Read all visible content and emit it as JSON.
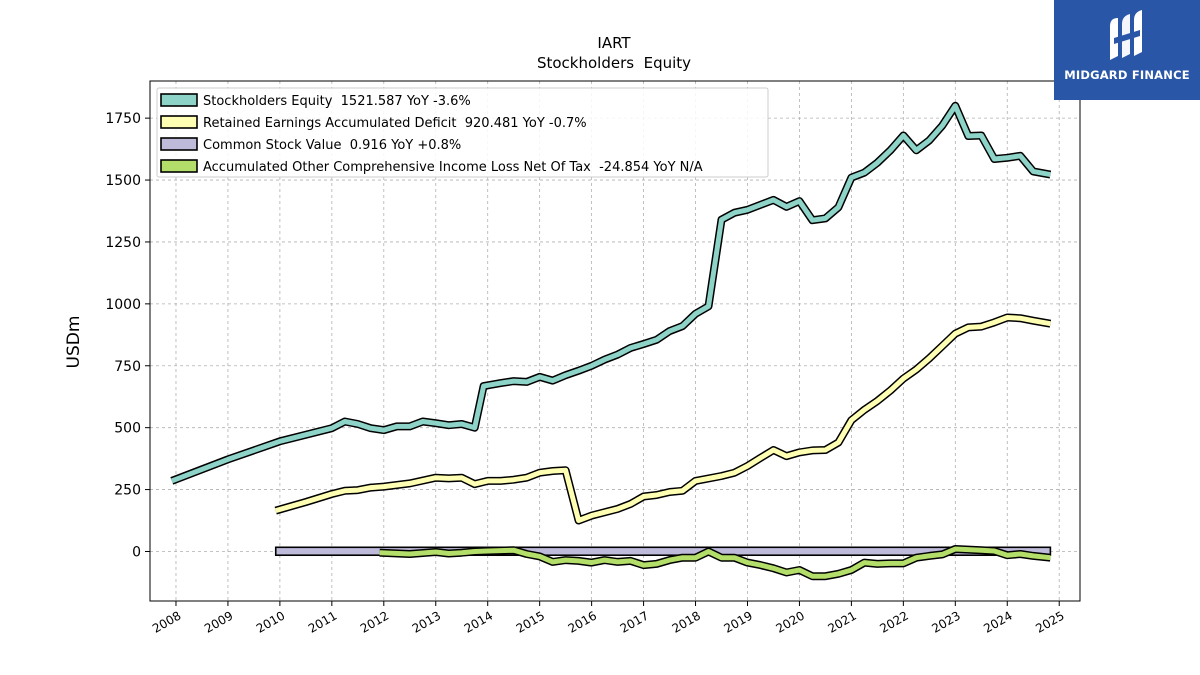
{
  "brand": {
    "name": "MIDGARD FINANCE",
    "color": "#2a56a8"
  },
  "chart_data": {
    "type": "line",
    "title": "IART",
    "subtitle": "Stockholders  Equity",
    "ylabel": "USDm",
    "xlabel": "",
    "xlim": [
      2007.5,
      2025.4
    ],
    "ylim": [
      -200,
      1900
    ],
    "yticks": [
      0,
      250,
      500,
      750,
      1000,
      1250,
      1500,
      1750
    ],
    "xticks": [
      "2008",
      "2009",
      "2010",
      "2011",
      "2012",
      "2013",
      "2014",
      "2015",
      "2016",
      "2017",
      "2018",
      "2019",
      "2020",
      "2021",
      "2022",
      "2023",
      "2024",
      "2025"
    ],
    "grid": true,
    "legend_position": "top-left",
    "series": [
      {
        "name": "Stockholders Equity",
        "legend_label": "Stockholders Equity  1521.587 YoY -3.6%",
        "color": "#8dd3c7",
        "points": [
          [
            2007.92,
            285
          ],
          [
            2009.0,
            372
          ],
          [
            2010.0,
            445
          ],
          [
            2011.0,
            498
          ],
          [
            2011.25,
            525
          ],
          [
            2011.5,
            515
          ],
          [
            2011.75,
            498
          ],
          [
            2012.0,
            490
          ],
          [
            2012.25,
            505
          ],
          [
            2012.5,
            505
          ],
          [
            2012.75,
            525
          ],
          [
            2013.0,
            518
          ],
          [
            2013.25,
            510
          ],
          [
            2013.5,
            515
          ],
          [
            2013.75,
            500
          ],
          [
            2013.92,
            668
          ],
          [
            2014.25,
            680
          ],
          [
            2014.5,
            688
          ],
          [
            2014.75,
            685
          ],
          [
            2015.0,
            705
          ],
          [
            2015.25,
            690
          ],
          [
            2015.5,
            712
          ],
          [
            2015.75,
            730
          ],
          [
            2016.0,
            750
          ],
          [
            2016.25,
            775
          ],
          [
            2016.5,
            795
          ],
          [
            2016.75,
            822
          ],
          [
            2017.0,
            838
          ],
          [
            2017.25,
            855
          ],
          [
            2017.5,
            890
          ],
          [
            2017.75,
            910
          ],
          [
            2018.0,
            960
          ],
          [
            2018.25,
            990
          ],
          [
            2018.5,
            1340
          ],
          [
            2018.75,
            1368
          ],
          [
            2019.0,
            1380
          ],
          [
            2019.25,
            1400
          ],
          [
            2019.5,
            1420
          ],
          [
            2019.75,
            1392
          ],
          [
            2020.0,
            1415
          ],
          [
            2020.25,
            1338
          ],
          [
            2020.5,
            1345
          ],
          [
            2020.75,
            1390
          ],
          [
            2021.0,
            1510
          ],
          [
            2021.25,
            1530
          ],
          [
            2021.5,
            1570
          ],
          [
            2021.75,
            1620
          ],
          [
            2022.0,
            1680
          ],
          [
            2022.25,
            1620
          ],
          [
            2022.5,
            1660
          ],
          [
            2022.75,
            1720
          ],
          [
            2023.0,
            1800
          ],
          [
            2023.25,
            1678
          ],
          [
            2023.5,
            1680
          ],
          [
            2023.75,
            1585
          ],
          [
            2024.0,
            1590
          ],
          [
            2024.25,
            1598
          ],
          [
            2024.5,
            1535
          ],
          [
            2024.83,
            1522
          ]
        ]
      },
      {
        "name": "Retained Earnings Accumulated Deficit",
        "legend_label": "Retained Earnings Accumulated Deficit  920.481 YoY -0.7%",
        "color": "#ffffb3",
        "points": [
          [
            2009.92,
            165
          ],
          [
            2010.5,
            200
          ],
          [
            2011.0,
            232
          ],
          [
            2011.25,
            245
          ],
          [
            2011.5,
            248
          ],
          [
            2011.75,
            258
          ],
          [
            2012.0,
            262
          ],
          [
            2012.5,
            275
          ],
          [
            2013.0,
            298
          ],
          [
            2013.25,
            295
          ],
          [
            2013.5,
            298
          ],
          [
            2013.75,
            272
          ],
          [
            2014.0,
            285
          ],
          [
            2014.25,
            285
          ],
          [
            2014.5,
            290
          ],
          [
            2014.75,
            298
          ],
          [
            2015.0,
            318
          ],
          [
            2015.25,
            325
          ],
          [
            2015.5,
            328
          ],
          [
            2015.75,
            125
          ],
          [
            2016.0,
            145
          ],
          [
            2016.5,
            172
          ],
          [
            2016.75,
            192
          ],
          [
            2017.0,
            222
          ],
          [
            2017.25,
            228
          ],
          [
            2017.5,
            240
          ],
          [
            2017.75,
            245
          ],
          [
            2018.0,
            285
          ],
          [
            2018.5,
            305
          ],
          [
            2018.75,
            318
          ],
          [
            2019.0,
            345
          ],
          [
            2019.25,
            378
          ],
          [
            2019.5,
            410
          ],
          [
            2019.75,
            385
          ],
          [
            2020.0,
            400
          ],
          [
            2020.25,
            408
          ],
          [
            2020.5,
            410
          ],
          [
            2020.75,
            440
          ],
          [
            2021.0,
            530
          ],
          [
            2021.25,
            572
          ],
          [
            2021.5,
            608
          ],
          [
            2021.75,
            650
          ],
          [
            2022.0,
            698
          ],
          [
            2022.25,
            735
          ],
          [
            2022.5,
            780
          ],
          [
            2022.75,
            830
          ],
          [
            2023.0,
            880
          ],
          [
            2023.25,
            905
          ],
          [
            2023.5,
            908
          ],
          [
            2023.75,
            925
          ],
          [
            2024.0,
            945
          ],
          [
            2024.25,
            942
          ],
          [
            2024.5,
            932
          ],
          [
            2024.83,
            920
          ]
        ]
      },
      {
        "name": "Common Stock Value",
        "legend_label": "Common Stock Value  0.916 YoY +0.8%",
        "color": "#bebada",
        "points": [
          [
            2009.92,
            0.9
          ],
          [
            2024.83,
            0.916
          ]
        ],
        "bar_height": 32
      },
      {
        "name": "Accumulated Other Comprehensive Income Loss Net Of Tax",
        "legend_label": "Accumulated Other Comprehensive Income Loss Net Of Tax  -24.854 YoY N/A",
        "color": "#b3de69",
        "points": [
          [
            2011.92,
            -5
          ],
          [
            2012.5,
            -10
          ],
          [
            2013.0,
            -2
          ],
          [
            2013.25,
            -8
          ],
          [
            2013.5,
            -5
          ],
          [
            2013.75,
            0
          ],
          [
            2014.0,
            2
          ],
          [
            2014.5,
            5
          ],
          [
            2014.75,
            -10
          ],
          [
            2015.0,
            -20
          ],
          [
            2015.25,
            -42
          ],
          [
            2015.5,
            -35
          ],
          [
            2015.75,
            -38
          ],
          [
            2016.0,
            -45
          ],
          [
            2016.25,
            -35
          ],
          [
            2016.5,
            -42
          ],
          [
            2016.75,
            -38
          ],
          [
            2017.0,
            -55
          ],
          [
            2017.25,
            -50
          ],
          [
            2017.5,
            -35
          ],
          [
            2017.75,
            -25
          ],
          [
            2018.0,
            -25
          ],
          [
            2018.25,
            0
          ],
          [
            2018.5,
            -25
          ],
          [
            2018.75,
            -25
          ],
          [
            2019.0,
            -45
          ],
          [
            2019.25,
            -55
          ],
          [
            2019.5,
            -68
          ],
          [
            2019.75,
            -85
          ],
          [
            2020.0,
            -75
          ],
          [
            2020.25,
            -100
          ],
          [
            2020.5,
            -100
          ],
          [
            2020.75,
            -90
          ],
          [
            2021.0,
            -75
          ],
          [
            2021.25,
            -45
          ],
          [
            2021.5,
            -50
          ],
          [
            2021.75,
            -48
          ],
          [
            2022.0,
            -48
          ],
          [
            2022.25,
            -25
          ],
          [
            2022.5,
            -18
          ],
          [
            2022.75,
            -12
          ],
          [
            2023.0,
            10
          ],
          [
            2023.5,
            5
          ],
          [
            2023.75,
            2
          ],
          [
            2024.0,
            -15
          ],
          [
            2024.25,
            -10
          ],
          [
            2024.5,
            -18
          ],
          [
            2024.83,
            -25
          ]
        ]
      }
    ]
  }
}
